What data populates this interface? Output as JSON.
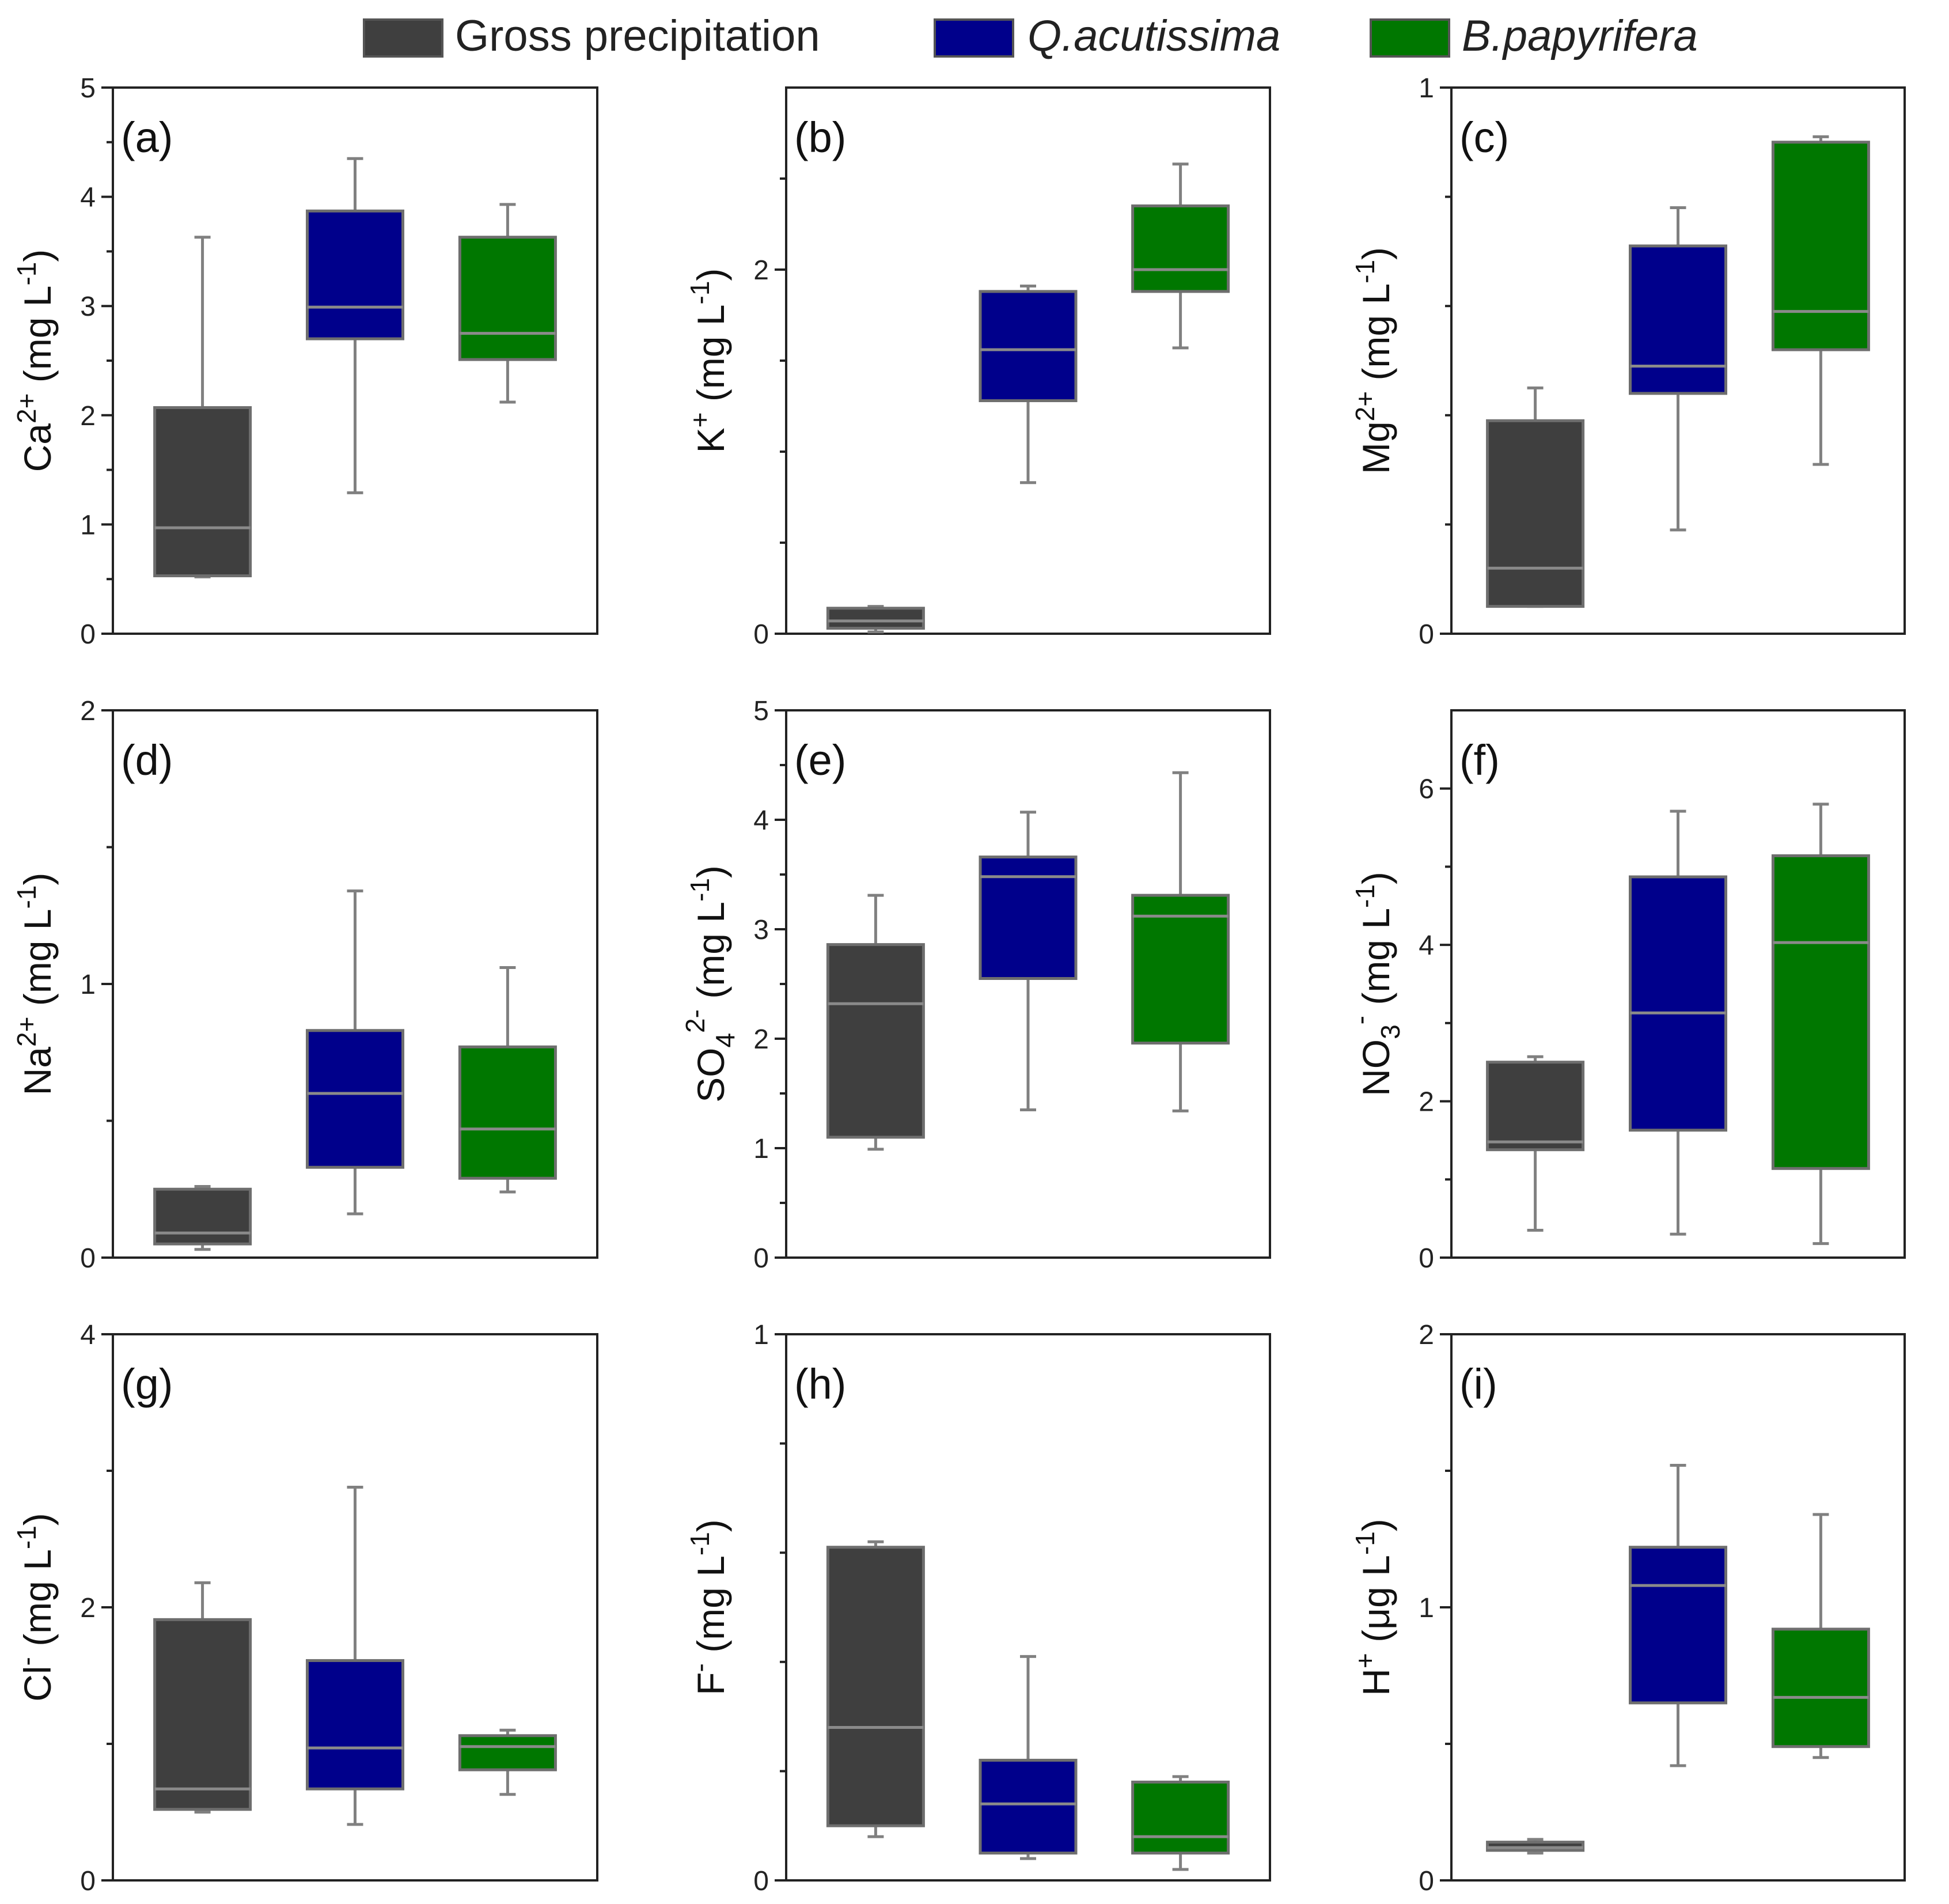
{
  "legend": [
    {
      "label": "Gross precipitation",
      "italic": false,
      "color": "#3f3f3f"
    },
    {
      "label": "Q.acutissima",
      "italic": true,
      "color": "#00008b"
    },
    {
      "label": "B.papyrifera",
      "italic": true,
      "color": "#007700"
    }
  ],
  "chart_data": [
    {
      "panel": "(a)",
      "type": "box",
      "ylabel_base": "Ca",
      "ylabel_sup": "2+",
      "ylabel_sub": "",
      "ylabel_unit": "(mg L",
      "ylabel_unit_sup": "-1",
      "ylabel_close": ")",
      "ylim": [
        0,
        5
      ],
      "ticks": [
        0,
        1,
        2,
        3,
        4,
        5
      ],
      "tick_labels": [
        "0",
        "1",
        "2",
        "3",
        "4",
        "5"
      ],
      "minor": [
        0.5,
        1.5,
        2.5,
        3.5,
        4.5
      ],
      "series": [
        {
          "name": "Gross precipitation",
          "min": 0.52,
          "q1": 0.53,
          "median": 0.97,
          "q3": 2.07,
          "max": 3.63
        },
        {
          "name": "Q.acutissima",
          "min": 1.29,
          "q1": 2.7,
          "median": 2.99,
          "q3": 3.87,
          "max": 4.35
        },
        {
          "name": "B.papyrifera",
          "min": 2.12,
          "q1": 2.51,
          "median": 2.75,
          "q3": 3.63,
          "max": 3.93
        }
      ]
    },
    {
      "panel": "(b)",
      "type": "box",
      "ylabel_base": "K",
      "ylabel_sup": "+",
      "ylabel_sub": "",
      "ylabel_unit": "(mg L",
      "ylabel_unit_sup": "-1",
      "ylabel_close": ")",
      "ylim": [
        0,
        3
      ],
      "ticks": [
        0,
        2
      ],
      "tick_labels": [
        "0",
        "2"
      ],
      "minor": [
        0.5,
        1,
        1.5,
        2.5
      ],
      "series": [
        {
          "name": "Gross precipitation",
          "min": 0.01,
          "q1": 0.03,
          "median": 0.07,
          "q3": 0.14,
          "max": 0.15
        },
        {
          "name": "Q.acutissima",
          "min": 0.83,
          "q1": 1.28,
          "median": 1.56,
          "q3": 1.88,
          "max": 1.91
        },
        {
          "name": "B.papyrifera",
          "min": 1.57,
          "q1": 1.88,
          "median": 2.0,
          "q3": 2.35,
          "max": 2.58
        }
      ]
    },
    {
      "panel": "(c)",
      "type": "box",
      "ylabel_base": "Mg",
      "ylabel_sup": "2+",
      "ylabel_sub": "",
      "ylabel_unit": "(mg L",
      "ylabel_unit_sup": "-1",
      "ylabel_close": ")",
      "ylim": [
        0,
        1
      ],
      "ticks": [
        0,
        1
      ],
      "tick_labels": [
        "0",
        "1"
      ],
      "minor": [
        0.2,
        0.4,
        0.6,
        0.8
      ],
      "series": [
        {
          "name": "Gross precipitation",
          "min": 0.05,
          "q1": 0.05,
          "median": 0.12,
          "q3": 0.39,
          "max": 0.45
        },
        {
          "name": "Q.acutissima",
          "min": 0.19,
          "q1": 0.44,
          "median": 0.49,
          "q3": 0.71,
          "max": 0.78
        },
        {
          "name": "B.papyrifera",
          "min": 0.31,
          "q1": 0.52,
          "median": 0.59,
          "q3": 0.9,
          "max": 0.91
        }
      ]
    },
    {
      "panel": "(d)",
      "type": "box",
      "ylabel_base": "Na",
      "ylabel_sup": "2+",
      "ylabel_sub": "",
      "ylabel_unit": "(mg L",
      "ylabel_unit_sup": "-1",
      "ylabel_close": ")",
      "ylim": [
        0,
        2
      ],
      "ticks": [
        0,
        1,
        2
      ],
      "tick_labels": [
        "0",
        "1",
        "2"
      ],
      "minor": [
        0.5,
        1.5
      ],
      "series": [
        {
          "name": "Gross precipitation",
          "min": 0.03,
          "q1": 0.05,
          "median": 0.09,
          "q3": 0.25,
          "max": 0.26
        },
        {
          "name": "Q.acutissima",
          "min": 0.16,
          "q1": 0.33,
          "median": 0.6,
          "q3": 0.83,
          "max": 1.34
        },
        {
          "name": "B.papyrifera",
          "min": 0.24,
          "q1": 0.29,
          "median": 0.47,
          "q3": 0.77,
          "max": 1.06
        }
      ]
    },
    {
      "panel": "(e)",
      "type": "box",
      "ylabel_base": "SO",
      "ylabel_sup": "2-",
      "ylabel_sub": "4",
      "ylabel_unit": "(mg L",
      "ylabel_unit_sup": "-1",
      "ylabel_close": ")",
      "ylim": [
        0,
        5
      ],
      "ticks": [
        0,
        1,
        2,
        3,
        4,
        5
      ],
      "tick_labels": [
        "0",
        "1",
        "2",
        "3",
        "4",
        "5"
      ],
      "minor": [
        0.5,
        1.5,
        2.5,
        3.5,
        4.5
      ],
      "series": [
        {
          "name": "Gross precipitation",
          "min": 0.99,
          "q1": 1.1,
          "median": 2.32,
          "q3": 2.86,
          "max": 3.31
        },
        {
          "name": "Q.acutissima",
          "min": 1.35,
          "q1": 2.55,
          "median": 3.48,
          "q3": 3.66,
          "max": 4.07
        },
        {
          "name": "B.papyrifera",
          "min": 1.34,
          "q1": 1.96,
          "median": 3.12,
          "q3": 3.31,
          "max": 4.43
        }
      ]
    },
    {
      "panel": "(f)",
      "type": "box",
      "ylabel_base": "NO",
      "ylabel_sup": "-",
      "ylabel_sub": "3",
      "ylabel_unit": "(mg L",
      "ylabel_unit_sup": "-1",
      "ylabel_close": ")",
      "ylim": [
        0,
        7
      ],
      "ticks": [
        0,
        2,
        4,
        6
      ],
      "tick_labels": [
        "0",
        "2",
        "4",
        "6"
      ],
      "minor": [
        1,
        3,
        5
      ],
      "series": [
        {
          "name": "Gross precipitation",
          "min": 0.35,
          "q1": 1.38,
          "median": 1.48,
          "q3": 2.5,
          "max": 2.57
        },
        {
          "name": "Q.acutissima",
          "min": 0.3,
          "q1": 1.63,
          "median": 3.13,
          "q3": 4.87,
          "max": 5.71
        },
        {
          "name": "B.papyrifera",
          "min": 0.18,
          "q1": 1.14,
          "median": 4.03,
          "q3": 5.14,
          "max": 5.8
        }
      ]
    },
    {
      "panel": "(g)",
      "type": "box",
      "ylabel_base": "Cl",
      "ylabel_sup": "-",
      "ylabel_sub": "",
      "ylabel_unit": "(mg L",
      "ylabel_unit_sup": "-1",
      "ylabel_close": ")",
      "ylim": [
        0,
        4
      ],
      "ticks": [
        0,
        2,
        4
      ],
      "tick_labels": [
        "0",
        "2",
        "4"
      ],
      "minor": [
        1,
        3
      ],
      "series": [
        {
          "name": "Gross precipitation",
          "min": 0.5,
          "q1": 0.52,
          "median": 0.67,
          "q3": 1.91,
          "max": 2.18
        },
        {
          "name": "Q.acutissima",
          "min": 0.41,
          "q1": 0.67,
          "median": 0.97,
          "q3": 1.61,
          "max": 2.88
        },
        {
          "name": "B.papyrifera",
          "min": 0.63,
          "q1": 0.81,
          "median": 0.98,
          "q3": 1.06,
          "max": 1.1
        }
      ]
    },
    {
      "panel": "(h)",
      "type": "box",
      "ylabel_base": "F",
      "ylabel_sup": "-",
      "ylabel_sub": "",
      "ylabel_unit": "(mg L",
      "ylabel_unit_sup": "-1",
      "ylabel_close": ")",
      "ylim": [
        0,
        1
      ],
      "ticks": [
        0,
        1
      ],
      "tick_labels": [
        "0",
        "1"
      ],
      "minor": [
        0.2,
        0.4,
        0.6,
        0.8
      ],
      "series": [
        {
          "name": "Gross precipitation",
          "min": 0.08,
          "q1": 0.1,
          "median": 0.28,
          "q3": 0.61,
          "max": 0.62
        },
        {
          "name": "Q.acutissima",
          "min": 0.04,
          "q1": 0.05,
          "median": 0.14,
          "q3": 0.22,
          "max": 0.41
        },
        {
          "name": "B.papyrifera",
          "min": 0.02,
          "q1": 0.05,
          "median": 0.08,
          "q3": 0.18,
          "max": 0.19
        }
      ]
    },
    {
      "panel": "(i)",
      "type": "box",
      "ylabel_base": "H",
      "ylabel_sup": "+",
      "ylabel_sub": "",
      "ylabel_unit": "(μg L",
      "ylabel_unit_sup": "-1",
      "ylabel_close": ")",
      "ylim": [
        0,
        2
      ],
      "ticks": [
        0,
        1,
        2
      ],
      "tick_labels": [
        "0",
        "1",
        "2"
      ],
      "minor": [
        0.5,
        1.5
      ],
      "series": [
        {
          "name": "Gross precipitation",
          "min": 0.1,
          "q1": 0.11,
          "median": 0.12,
          "q3": 0.14,
          "max": 0.15
        },
        {
          "name": "Q.acutissima",
          "min": 0.42,
          "q1": 0.65,
          "median": 1.08,
          "q3": 1.22,
          "max": 1.52
        },
        {
          "name": "B.papyrifera",
          "min": 0.45,
          "q1": 0.49,
          "median": 0.67,
          "q3": 0.92,
          "max": 1.34
        }
      ]
    }
  ]
}
